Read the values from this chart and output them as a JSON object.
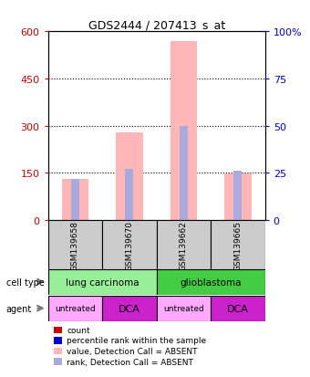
{
  "title": "GDS2444 / 207413_s_at",
  "samples": [
    "GSM139658",
    "GSM139670",
    "GSM139662",
    "GSM139665"
  ],
  "bar_values": [
    130,
    280,
    570,
    148
  ],
  "rank_values": [
    22,
    27,
    50,
    26
  ],
  "bar_color": "#ffb6b6",
  "rank_bar_color": "#aaaadd",
  "ylim_left": [
    0,
    600
  ],
  "ylim_right": [
    0,
    100
  ],
  "yticks_left": [
    0,
    150,
    300,
    450,
    600
  ],
  "yticks_right": [
    0,
    25,
    50,
    75,
    100
  ],
  "ytick_labels_left": [
    "0",
    "150",
    "300",
    "450",
    "600"
  ],
  "ytick_labels_right": [
    "0",
    "25",
    "50",
    "75",
    "100%"
  ],
  "left_tick_color": "#cc0000",
  "right_tick_color": "#0000cc",
  "cell_type_groups": [
    {
      "label": "lung carcinoma",
      "cols": [
        0,
        1
      ],
      "color": "#99ee99"
    },
    {
      "label": "glioblastoma",
      "cols": [
        2,
        3
      ],
      "color": "#44cc44"
    }
  ],
  "agents": [
    "untreated",
    "DCA",
    "untreated",
    "DCA"
  ],
  "agent_colors": [
    "#ffaaff",
    "#cc22cc",
    "#ffaaff",
    "#cc22cc"
  ],
  "sample_box_color": "#cccccc",
  "legend_items": [
    {
      "label": "count",
      "color": "#cc0000"
    },
    {
      "label": "percentile rank within the sample",
      "color": "#0000cc"
    },
    {
      "label": "value, Detection Call = ABSENT",
      "color": "#ffb6b6"
    },
    {
      "label": "rank, Detection Call = ABSENT",
      "color": "#aaaadd"
    }
  ]
}
